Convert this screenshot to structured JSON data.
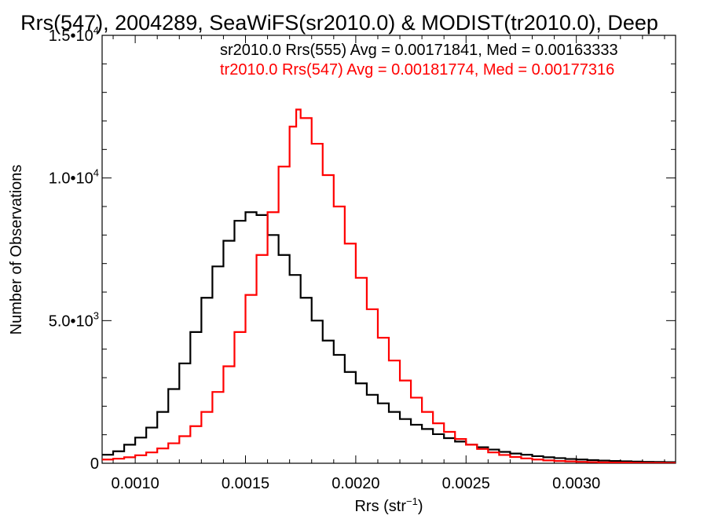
{
  "chart_data": {
    "type": "line",
    "title": "Rrs(547), 2004289, SeaWiFS(sr2010.0) & MODIST(tr2010.0), Deep",
    "xlabel": "Rrs (str",
    "xlabel_sup": "−1",
    "xlabel_close": ")",
    "ylabel": "Number of Observations",
    "xlim": [
      0.00085,
      0.00345
    ],
    "ylim": [
      0,
      15000
    ],
    "x_ticks": [
      {
        "value": 0.001,
        "label": "0.0010"
      },
      {
        "value": 0.0015,
        "label": "0.0015"
      },
      {
        "value": 0.002,
        "label": "0.0020"
      },
      {
        "value": 0.0025,
        "label": "0.0025"
      },
      {
        "value": 0.003,
        "label": "0.0030"
      }
    ],
    "y_ticks": [
      {
        "value": 0,
        "mant": "0",
        "exp": ""
      },
      {
        "value": 5000,
        "mant": "5.0•10",
        "exp": "3"
      },
      {
        "value": 10000,
        "mant": "1.0•10",
        "exp": "4"
      },
      {
        "value": 15000,
        "mant": "1.5•10",
        "exp": "4"
      }
    ],
    "grid": false,
    "series": [
      {
        "name": "sr2010.0 Rrs(555) Avg = 0.00171841, Med = 0.00163333",
        "color": "#000000",
        "points": [
          [
            0.00085,
            300
          ],
          [
            0.0009,
            420
          ],
          [
            0.00095,
            650
          ],
          [
            0.001,
            900
          ],
          [
            0.00105,
            1250
          ],
          [
            0.0011,
            1800
          ],
          [
            0.00115,
            2600
          ],
          [
            0.0012,
            3500
          ],
          [
            0.00125,
            4600
          ],
          [
            0.0013,
            5800
          ],
          [
            0.00135,
            6900
          ],
          [
            0.0014,
            7800
          ],
          [
            0.00145,
            8500
          ],
          [
            0.0015,
            8800
          ],
          [
            0.00155,
            8700
          ],
          [
            0.0016,
            8000
          ],
          [
            0.00165,
            7300
          ],
          [
            0.0017,
            6600
          ],
          [
            0.00175,
            5800
          ],
          [
            0.0018,
            5000
          ],
          [
            0.00185,
            4300
          ],
          [
            0.0019,
            3800
          ],
          [
            0.00195,
            3200
          ],
          [
            0.002,
            2800
          ],
          [
            0.00205,
            2400
          ],
          [
            0.0021,
            2100
          ],
          [
            0.00215,
            1800
          ],
          [
            0.0022,
            1550
          ],
          [
            0.00225,
            1350
          ],
          [
            0.0023,
            1200
          ],
          [
            0.00235,
            1020
          ],
          [
            0.0024,
            880
          ],
          [
            0.00245,
            760
          ],
          [
            0.0025,
            650
          ],
          [
            0.00255,
            560
          ],
          [
            0.0026,
            480
          ],
          [
            0.00265,
            400
          ],
          [
            0.0027,
            340
          ],
          [
            0.00275,
            300
          ],
          [
            0.0028,
            250
          ],
          [
            0.00285,
            210
          ],
          [
            0.0029,
            180
          ],
          [
            0.00295,
            150
          ],
          [
            0.003,
            130
          ],
          [
            0.00305,
            110
          ],
          [
            0.0031,
            95
          ],
          [
            0.00315,
            80
          ],
          [
            0.0032,
            70
          ],
          [
            0.00325,
            60
          ],
          [
            0.0033,
            50
          ],
          [
            0.00335,
            45
          ],
          [
            0.0034,
            40
          ],
          [
            0.00345,
            35
          ]
        ]
      },
      {
        "name": "tr2010.0 Rrs(547) Avg = 0.00181774, Med = 0.00177316",
        "color": "#ff0000",
        "points": [
          [
            0.00085,
            130
          ],
          [
            0.0009,
            160
          ],
          [
            0.00095,
            210
          ],
          [
            0.001,
            280
          ],
          [
            0.00105,
            380
          ],
          [
            0.0011,
            520
          ],
          [
            0.00115,
            700
          ],
          [
            0.0012,
            950
          ],
          [
            0.00125,
            1300
          ],
          [
            0.0013,
            1800
          ],
          [
            0.00135,
            2500
          ],
          [
            0.0014,
            3400
          ],
          [
            0.00145,
            4600
          ],
          [
            0.0015,
            5900
          ],
          [
            0.00155,
            7300
          ],
          [
            0.0016,
            8800
          ],
          [
            0.00165,
            10400
          ],
          [
            0.0017,
            11800
          ],
          [
            0.00173,
            12400
          ],
          [
            0.00175,
            12100
          ],
          [
            0.0018,
            11200
          ],
          [
            0.00185,
            10100
          ],
          [
            0.0019,
            9000
          ],
          [
            0.00195,
            7700
          ],
          [
            0.002,
            6500
          ],
          [
            0.00205,
            5400
          ],
          [
            0.0021,
            4400
          ],
          [
            0.00215,
            3600
          ],
          [
            0.0022,
            2900
          ],
          [
            0.00225,
            2300
          ],
          [
            0.0023,
            1800
          ],
          [
            0.00235,
            1400
          ],
          [
            0.0024,
            1100
          ],
          [
            0.00245,
            850
          ],
          [
            0.0025,
            650
          ],
          [
            0.00255,
            500
          ],
          [
            0.0026,
            380
          ],
          [
            0.00265,
            290
          ],
          [
            0.0027,
            220
          ],
          [
            0.00275,
            170
          ],
          [
            0.0028,
            130
          ],
          [
            0.00285,
            100
          ],
          [
            0.0029,
            80
          ],
          [
            0.00295,
            65
          ],
          [
            0.003,
            50
          ],
          [
            0.00305,
            40
          ],
          [
            0.0031,
            32
          ],
          [
            0.00315,
            26
          ],
          [
            0.0032,
            20
          ],
          [
            0.00325,
            16
          ],
          [
            0.0033,
            12
          ],
          [
            0.00335,
            10
          ],
          [
            0.0034,
            8
          ],
          [
            0.00345,
            6
          ]
        ]
      }
    ]
  }
}
